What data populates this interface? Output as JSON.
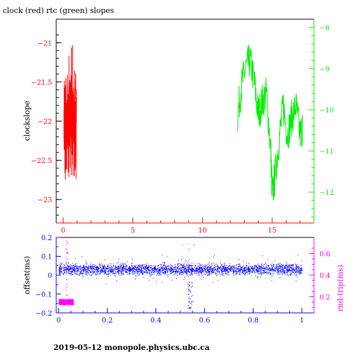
{
  "title": "clock (red) rtc (green) slopes",
  "footer": "2019-05-12  monopole.physics.ubc.ca",
  "colors": {
    "clock": "#ff0000",
    "rtc": "#00ee00",
    "offset": "#0000ff",
    "rndtrip": "#ff00ff",
    "axis": "#000000"
  },
  "chart_data": [
    {
      "type": "line",
      "title": "clock (red) rtc (green) slopes",
      "ylabel": "clockslope",
      "y2label": "",
      "xlim": [
        -0.5,
        18
      ],
      "ylim": [
        -23.3,
        -20.7
      ],
      "y2lim": [
        -12.75,
        -7.8
      ],
      "xticks": [
        0,
        5,
        10,
        15
      ],
      "yticks": [
        -21,
        -21.5,
        -22,
        -22.5,
        -23
      ],
      "y2ticks": [
        -8,
        -9,
        -10,
        -11,
        -12
      ],
      "series": [
        {
          "name": "clock (red)",
          "axis": "left",
          "x_range": [
            0.05,
            0.95
          ],
          "center": -21.95,
          "noise": 0.45
        },
        {
          "name": "rtc (green)",
          "axis": "right",
          "x": [
            12.5,
            12.8,
            13.1,
            13.4,
            13.7,
            14.0,
            14.3,
            14.6,
            14.9,
            15.0,
            15.2,
            15.5,
            15.8,
            16.1,
            16.4,
            16.7,
            17.0,
            17.2
          ],
          "y": [
            -10.2,
            -9.4,
            -9.0,
            -8.8,
            -9.3,
            -10.1,
            -9.8,
            -9.6,
            -11.0,
            -12.1,
            -11.6,
            -10.7,
            -9.9,
            -10.6,
            -10.2,
            -9.9,
            -10.6,
            -10.4
          ]
        }
      ]
    },
    {
      "type": "scatter",
      "ylabel": "offset(ms)",
      "y2label": "rnd-trip(ms)",
      "xlim": [
        -0.01,
        1.05
      ],
      "ylim": [
        -0.2,
        0.2
      ],
      "y2lim": [
        0.05,
        0.75
      ],
      "xticks": [
        0,
        0.2,
        0.4,
        0.6,
        0.8,
        1
      ],
      "yticks": [
        0.2,
        0.1,
        0,
        -0.1,
        -0.2
      ],
      "y2ticks": [
        0.6,
        0.4,
        0.2
      ],
      "series": [
        {
          "name": "offset",
          "axis": "left",
          "x_range": [
            0,
            1
          ],
          "center": 0.03,
          "spread": 0.02
        },
        {
          "name": "rnd-trip",
          "axis": "right",
          "x_range": [
            0,
            0.06
          ],
          "center": 0.15,
          "spread": 0.03
        }
      ]
    }
  ]
}
